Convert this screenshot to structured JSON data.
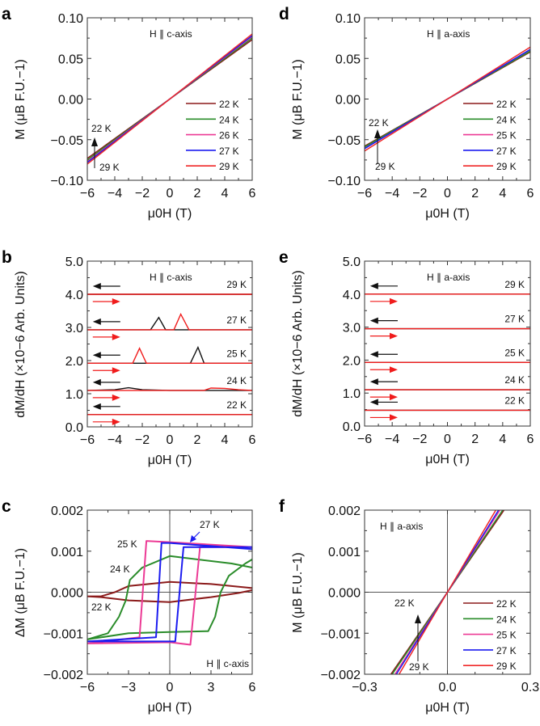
{
  "colors": {
    "22 K": "#8b1a1a",
    "24 K": "#2a8c2a",
    "25 K": "#ec3a95",
    "26 K": "#ec3a95",
    "27 K": "#1c1cf0",
    "29 K": "#f02828",
    "down_sweep": "#111111",
    "up_sweep": "#f01c1c",
    "axis": "#333333"
  },
  "chart_data": [
    {
      "panel": "a",
      "type": "line",
      "annotation": "H || c-axis",
      "xlabel": "μ0H (T)",
      "ylabel": "M (μB F.U.−1)",
      "xlim": [
        -6,
        6
      ],
      "ylim": [
        -0.1,
        0.1
      ],
      "xticks": [
        "−6",
        "−4",
        "−2",
        "0",
        "2",
        "4",
        "6"
      ],
      "xtick_values": [
        -6,
        -4,
        -2,
        0,
        2,
        4,
        6
      ],
      "yticks": [
        "−0.10",
        "−0.05",
        "0.00",
        "0.05",
        "0.10"
      ],
      "ytick_values": [
        -0.1,
        -0.05,
        0,
        0.05,
        0.1
      ],
      "legend": "right",
      "arrow_labels": {
        "top": "22 K",
        "bottom": "29 K"
      },
      "series": [
        {
          "name": "22 K",
          "points": [
            [
              -6,
              -0.073
            ],
            [
              6,
              0.073
            ]
          ]
        },
        {
          "name": "24 K",
          "points": [
            [
              -6,
              -0.075
            ],
            [
              6,
              0.075
            ]
          ]
        },
        {
          "name": "26 K",
          "points": [
            [
              -6,
              -0.077
            ],
            [
              6,
              0.077
            ]
          ]
        },
        {
          "name": "27 K",
          "points": [
            [
              -6,
              -0.078
            ],
            [
              6,
              0.078
            ]
          ]
        },
        {
          "name": "29 K",
          "points": [
            [
              -6,
              -0.08
            ],
            [
              6,
              0.08
            ]
          ]
        }
      ]
    },
    {
      "panel": "b",
      "type": "line",
      "annotation": "H || c-axis",
      "xlabel": "μ0H (T)",
      "ylabel": "dM/dH (×10−6 Arb. Units)",
      "xlim": [
        -6,
        6
      ],
      "ylim": [
        0,
        5
      ],
      "xticks": [
        "−6",
        "−4",
        "−2",
        "0",
        "2",
        "4",
        "6"
      ],
      "xtick_values": [
        -6,
        -4,
        -2,
        0,
        2,
        4,
        6
      ],
      "yticks": [
        "0.0",
        "1.0",
        "2.0",
        "3.0",
        "4.0",
        "5.0"
      ],
      "ytick_values": [
        0,
        1,
        2,
        3,
        4,
        5
      ],
      "series": [
        {
          "name": "29 K",
          "baseline": 4.0,
          "down": [
            [
              -6,
              4.0
            ],
            [
              6,
              4.0
            ]
          ],
          "up": [
            [
              -6,
              4.0
            ],
            [
              6,
              4.0
            ]
          ]
        },
        {
          "name": "27 K",
          "baseline": 2.93,
          "down": [
            [
              -6,
              2.93
            ],
            [
              -1.4,
              2.93
            ],
            [
              -0.8,
              3.3
            ],
            [
              -0.3,
              2.93
            ],
            [
              6,
              2.93
            ]
          ],
          "up": [
            [
              -6,
              2.93
            ],
            [
              0.3,
              2.93
            ],
            [
              0.8,
              3.4
            ],
            [
              1.4,
              2.93
            ],
            [
              6,
              2.93
            ]
          ]
        },
        {
          "name": "25 K",
          "baseline": 1.92,
          "down": [
            [
              -6,
              1.92
            ],
            [
              1.5,
              1.92
            ],
            [
              2.05,
              2.4
            ],
            [
              2.5,
              1.92
            ],
            [
              6,
              1.92
            ]
          ],
          "up": [
            [
              -6,
              1.92
            ],
            [
              -2.7,
              1.92
            ],
            [
              -2.2,
              2.37
            ],
            [
              -1.7,
              1.92
            ],
            [
              6,
              1.92
            ]
          ]
        },
        {
          "name": "24 K",
          "baseline": 1.1,
          "down": [
            [
              -6,
              1.1
            ],
            [
              -4,
              1.12
            ],
            [
              -3,
              1.18
            ],
            [
              -2,
              1.12
            ],
            [
              0,
              1.1
            ],
            [
              6,
              1.1
            ]
          ],
          "up": [
            [
              -6,
              1.1
            ],
            [
              2.5,
              1.1
            ],
            [
              3,
              1.17
            ],
            [
              4,
              1.16
            ],
            [
              5,
              1.12
            ],
            [
              6,
              1.1
            ]
          ]
        },
        {
          "name": "22 K",
          "baseline": 0.37,
          "down": [
            [
              -6,
              0.37
            ],
            [
              6,
              0.37
            ]
          ],
          "up": [
            [
              -6,
              0.37
            ],
            [
              6,
              0.37
            ]
          ]
        }
      ]
    },
    {
      "panel": "c",
      "type": "line",
      "annotation": "H || c-axis",
      "xlabel": "μ0H (T)",
      "ylabel": "ΔM (μB F.U.−1)",
      "xlim": [
        -6,
        6
      ],
      "ylim": [
        -0.002,
        0.002
      ],
      "xticks": [
        "−6",
        "−3",
        "0",
        "3",
        "6"
      ],
      "xtick_values": [
        -6,
        -3,
        0,
        3,
        6
      ],
      "yticks": [
        "−0.002",
        "−0.001",
        "0.000",
        "0.001",
        "0.002"
      ],
      "ytick_values": [
        -0.002,
        -0.001,
        0,
        0.001,
        0.002
      ],
      "series": [
        {
          "name": "22 K",
          "points": [
            [
              6,
              0.0001
            ],
            [
              3,
              0.0002
            ],
            [
              0,
              0.00025
            ],
            [
              -3,
              0.00015
            ],
            [
              -4,
              0.0
            ],
            [
              -5,
              -0.0001
            ],
            [
              -6,
              -0.0001
            ],
            [
              -5,
              -0.00012
            ],
            [
              -3,
              -0.0002
            ],
            [
              0,
              -0.00024
            ],
            [
              3,
              -0.00012
            ],
            [
              5,
              -2e-05
            ],
            [
              6,
              5e-05
            ]
          ]
        },
        {
          "name": "24 K",
          "points": [
            [
              6,
              0.0006
            ],
            [
              4.5,
              0.0007
            ],
            [
              0,
              0.00088
            ],
            [
              -2,
              0.0006
            ],
            [
              -2.9,
              0.0003
            ],
            [
              -3.2,
              -0.0002
            ],
            [
              -3.7,
              -0.0006
            ],
            [
              -4.5,
              -0.001
            ],
            [
              -6,
              -0.00115
            ],
            [
              -3,
              -0.001
            ],
            [
              0,
              -0.00097
            ],
            [
              2.8,
              -0.00095
            ],
            [
              3.3,
              -0.0006
            ],
            [
              3.7,
              0.0
            ],
            [
              4.3,
              0.0004
            ],
            [
              5.5,
              0.0007
            ],
            [
              6,
              0.0008
            ]
          ]
        },
        {
          "name": "25 K",
          "points": [
            [
              6,
              0.0011
            ],
            [
              0,
              0.00122
            ],
            [
              -1.7,
              0.00125
            ],
            [
              -2.2,
              -0.0011
            ],
            [
              -6,
              -0.00125
            ],
            [
              0,
              -0.00122
            ],
            [
              1.5,
              -0.00128
            ],
            [
              2.2,
              0.0011
            ],
            [
              6,
              0.0011
            ]
          ]
        },
        {
          "name": "27 K",
          "points": [
            [
              6,
              0.00105
            ],
            [
              0,
              0.0012
            ],
            [
              -0.6,
              0.0012
            ],
            [
              -1.0,
              -0.0011
            ],
            [
              -6,
              -0.0012
            ],
            [
              0.4,
              -0.0012
            ],
            [
              1.0,
              0.0011
            ],
            [
              6,
              0.0011
            ]
          ]
        }
      ]
    },
    {
      "panel": "d",
      "type": "line",
      "annotation": "H || a-axis",
      "xlabel": "μ0H (T)",
      "ylabel": "M (μB F.U.−1)",
      "xlim": [
        -6,
        6
      ],
      "ylim": [
        -0.1,
        0.1
      ],
      "xticks": [
        "−6",
        "−4",
        "−2",
        "0",
        "2",
        "4",
        "6"
      ],
      "xtick_values": [
        -6,
        -4,
        -2,
        0,
        2,
        4,
        6
      ],
      "yticks": [
        "−0.10",
        "−0.05",
        "0.00",
        "0.05",
        "0.10"
      ],
      "ytick_values": [
        -0.1,
        -0.05,
        0,
        0.05,
        0.1
      ],
      "legend": "right",
      "arrow_labels": {
        "top": "22 K",
        "bottom": "29 K"
      },
      "series": [
        {
          "name": "22 K",
          "points": [
            [
              -6,
              -0.058
            ],
            [
              6,
              0.058
            ]
          ]
        },
        {
          "name": "24 K",
          "points": [
            [
              -6,
              -0.059
            ],
            [
              6,
              0.059
            ]
          ]
        },
        {
          "name": "25 K",
          "points": [
            [
              -6,
              -0.061
            ],
            [
              6,
              0.061
            ]
          ]
        },
        {
          "name": "27 K",
          "points": [
            [
              -6,
              -0.061
            ],
            [
              6,
              0.061
            ]
          ]
        },
        {
          "name": "29 K",
          "points": [
            [
              -6,
              -0.064
            ],
            [
              6,
              0.064
            ]
          ]
        }
      ]
    },
    {
      "panel": "e",
      "type": "line",
      "annotation": "H || a-axis",
      "xlabel": "μ0H (T)",
      "ylabel": "dM/dH (×10−6 Arb. Units)",
      "xlim": [
        -6,
        6
      ],
      "ylim": [
        0,
        5
      ],
      "xticks": [
        "−6",
        "−4",
        "−2",
        "0",
        "2",
        "4",
        "6"
      ],
      "xtick_values": [
        -6,
        -4,
        -2,
        0,
        2,
        4,
        6
      ],
      "yticks": [
        "0.0",
        "1.0",
        "2.0",
        "3.0",
        "4.0",
        "5.0"
      ],
      "ytick_values": [
        0,
        1,
        2,
        3,
        4,
        5
      ],
      "series": [
        {
          "name": "29 K",
          "baseline": 4.0,
          "down": [
            [
              -6,
              4.0
            ],
            [
              6,
              4.0
            ]
          ],
          "up": [
            [
              -6,
              4.0
            ],
            [
              6,
              4.0
            ]
          ]
        },
        {
          "name": "27 K",
          "baseline": 2.95,
          "down": [
            [
              -6,
              2.95
            ],
            [
              6,
              2.95
            ]
          ],
          "up": [
            [
              -6,
              2.95
            ],
            [
              6,
              2.95
            ]
          ]
        },
        {
          "name": "25 K",
          "baseline": 1.93,
          "down": [
            [
              -6,
              1.93
            ],
            [
              6,
              1.93
            ]
          ],
          "up": [
            [
              -6,
              1.93
            ],
            [
              6,
              1.93
            ]
          ]
        },
        {
          "name": "24 K",
          "baseline": 1.1,
          "down": [
            [
              -6,
              1.1
            ],
            [
              6,
              1.1
            ]
          ],
          "up": [
            [
              -6,
              1.1
            ],
            [
              6,
              1.1
            ]
          ]
        },
        {
          "name": "22 K",
          "baseline": 0.48,
          "down": [
            [
              -6,
              0.48
            ],
            [
              6,
              0.48
            ]
          ],
          "up": [
            [
              -6,
              0.48
            ],
            [
              6,
              0.48
            ]
          ]
        }
      ]
    },
    {
      "panel": "f",
      "type": "line",
      "annotation": "H || a-axis",
      "xlabel": "μ0H (T)",
      "ylabel": "M (μB F.U.−1)",
      "xlim": [
        -0.3,
        0.3
      ],
      "ylim": [
        -0.002,
        0.002
      ],
      "xticks": [
        "−0.3",
        "0.0",
        "0.3"
      ],
      "xtick_values": [
        -0.3,
        0,
        0.3
      ],
      "yticks": [
        "−0.002",
        "−0.001",
        "0.000",
        "0.001",
        "0.002"
      ],
      "ytick_values": [
        -0.002,
        -0.001,
        0,
        0.001,
        0.002
      ],
      "legend": "right",
      "arrow_labels": {
        "top": "22 K",
        "bottom": "29 K"
      },
      "series": [
        {
          "name": "22 K",
          "points": [
            [
              -0.205,
              -0.002
            ],
            [
              0.205,
              0.002
            ]
          ]
        },
        {
          "name": "24 K",
          "points": [
            [
              -0.2,
              -0.002
            ],
            [
              0.2,
              0.002
            ]
          ]
        },
        {
          "name": "25 K",
          "points": [
            [
              -0.19,
              -0.002
            ],
            [
              0.19,
              0.002
            ]
          ]
        },
        {
          "name": "27 K",
          "points": [
            [
              -0.185,
              -0.002
            ],
            [
              0.185,
              0.002
            ]
          ]
        },
        {
          "name": "29 K",
          "points": [
            [
              -0.175,
              -0.002
            ],
            [
              0.175,
              0.002
            ]
          ]
        }
      ]
    }
  ]
}
